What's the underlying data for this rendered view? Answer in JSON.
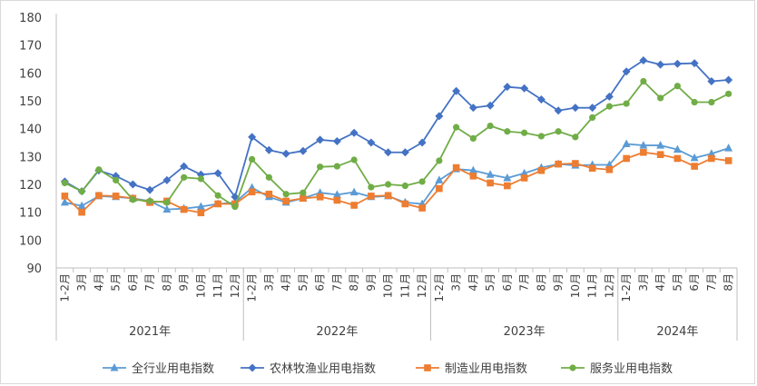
{
  "chart_data": {
    "type": "line",
    "title": "",
    "xlabel": "",
    "ylabel": "",
    "ylim": [
      90,
      180
    ],
    "yticks": [
      90,
      100,
      110,
      120,
      130,
      140,
      150,
      160,
      170,
      180
    ],
    "grid": false,
    "legend_position": "bottom",
    "categories": [
      "1-2月",
      "3月",
      "4月",
      "5月",
      "6月",
      "7月",
      "8月",
      "9月",
      "10月",
      "11月",
      "12月",
      "1-2月",
      "3月",
      "4月",
      "5月",
      "6月",
      "7月",
      "8月",
      "9月",
      "10月",
      "11月",
      "12月",
      "1-2月",
      "3月",
      "4月",
      "5月",
      "6月",
      "7月",
      "8月",
      "9月",
      "10月",
      "11月",
      "12月",
      "1-2月",
      "3月",
      "4月",
      "5月",
      "6月",
      "7月",
      "8月"
    ],
    "year_groups": [
      {
        "label": "2021年",
        "start": 0,
        "end": 10
      },
      {
        "label": "2022年",
        "start": 11,
        "end": 21
      },
      {
        "label": "2023年",
        "start": 22,
        "end": 32
      },
      {
        "label": "2024年",
        "start": 33,
        "end": 39
      }
    ],
    "series": [
      {
        "name": "全行业用电指数",
        "color": "#5b9bd5",
        "marker": "triangle",
        "values": [
          113.5,
          112.3,
          115.8,
          115.5,
          115.0,
          114.0,
          111.0,
          111.3,
          112.0,
          113.0,
          113.5,
          118.8,
          115.5,
          113.5,
          115.0,
          117.0,
          116.3,
          117.2,
          115.5,
          115.8,
          113.5,
          113.0,
          121.5,
          125.5,
          125.0,
          123.5,
          122.3,
          124.0,
          126.0,
          127.3,
          126.8,
          127.0,
          127.0,
          134.5,
          134.0,
          134.0,
          132.5,
          129.5,
          131.0,
          133.0
        ]
      },
      {
        "name": "农林牧渔业用电指数",
        "color": "#4472c4",
        "marker": "diamond",
        "values": [
          121.0,
          117.5,
          125.0,
          123.0,
          120.0,
          118.0,
          121.5,
          126.5,
          123.5,
          124.0,
          115.5,
          137.0,
          132.3,
          131.0,
          132.0,
          136.0,
          135.5,
          138.5,
          135.0,
          131.5,
          131.5,
          135.0,
          144.5,
          153.5,
          147.5,
          148.3,
          155.0,
          154.5,
          150.5,
          146.5,
          147.5,
          147.5,
          151.5,
          160.5,
          164.5,
          163.0,
          163.3,
          163.5,
          157.0,
          157.5
        ]
      },
      {
        "name": "制造业用电指数",
        "color": "#ed7d31",
        "marker": "square",
        "values": [
          115.8,
          110.0,
          116.0,
          115.8,
          115.0,
          113.5,
          114.0,
          111.0,
          109.8,
          113.0,
          113.0,
          117.3,
          116.5,
          114.0,
          115.0,
          115.5,
          114.3,
          112.5,
          115.8,
          116.0,
          113.0,
          111.5,
          118.5,
          126.0,
          123.0,
          120.5,
          119.5,
          122.3,
          125.0,
          127.3,
          127.5,
          125.8,
          125.3,
          129.3,
          131.5,
          130.7,
          129.3,
          126.5,
          129.3,
          128.5
        ]
      },
      {
        "name": "服务业用电指数",
        "color": "#70ad47",
        "marker": "circle",
        "values": [
          120.5,
          117.5,
          125.3,
          121.5,
          114.5,
          114.0,
          113.5,
          122.5,
          122.0,
          116.0,
          112.0,
          129.0,
          122.5,
          116.5,
          117.0,
          126.3,
          126.5,
          128.8,
          119.0,
          120.0,
          119.5,
          121.0,
          128.5,
          140.5,
          136.5,
          141.0,
          139.0,
          138.5,
          137.3,
          139.0,
          137.0,
          144.0,
          148.0,
          149.0,
          157.0,
          151.0,
          155.3,
          149.5,
          149.5,
          152.5
        ]
      }
    ]
  }
}
